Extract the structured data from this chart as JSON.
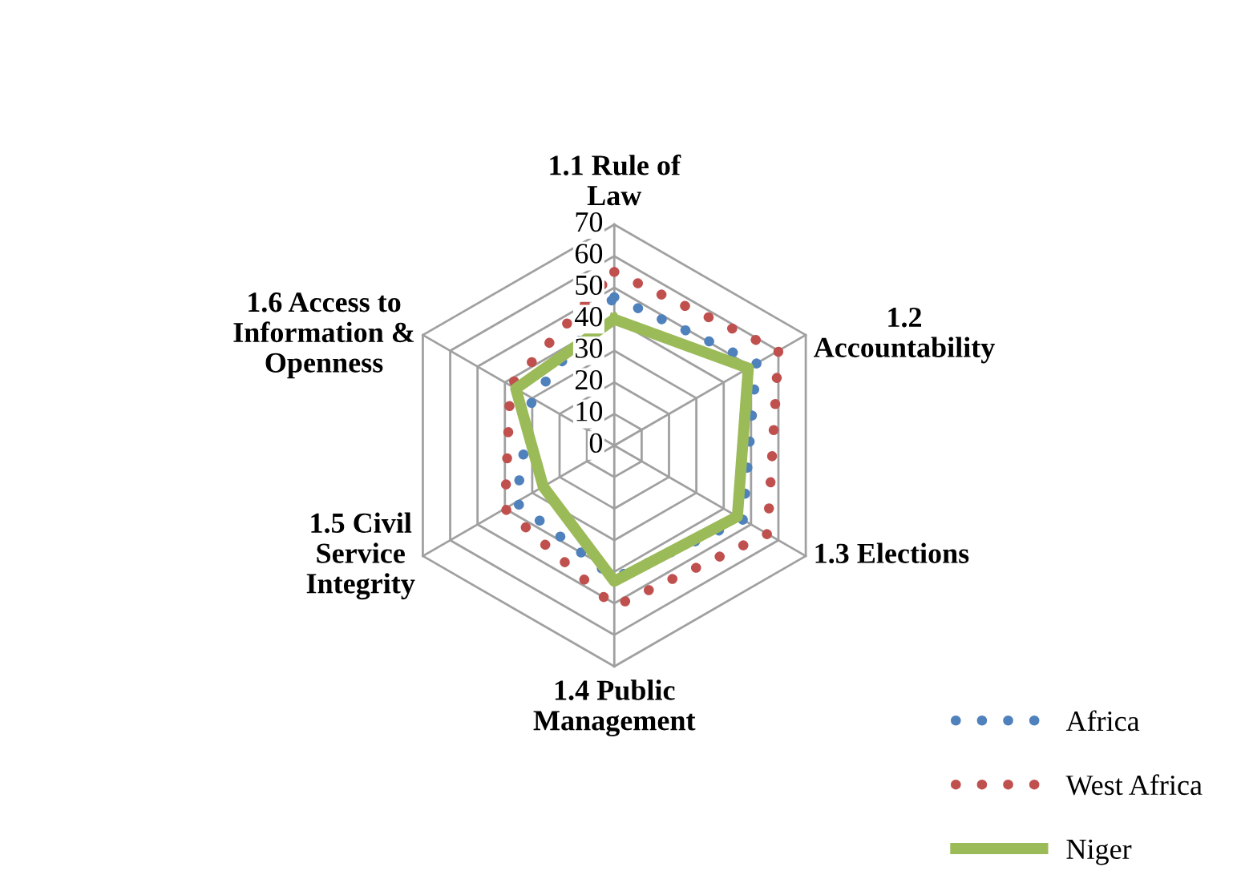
{
  "chart_data": {
    "type": "radar",
    "categories": [
      "1.1 Rule of\nLaw",
      "1.2\nAccountability",
      "1.3 Elections",
      "1.4 Public\nManagement",
      "1.5 Civil\nService\nIntegrity",
      "1.6 Access to\nInformation &\nOpenness"
    ],
    "series": [
      {
        "name": "Africa",
        "color": "#4f81bd",
        "line_style": "dotted",
        "values": [
          47,
          52,
          47,
          42,
          36,
          30
        ]
      },
      {
        "name": "West Africa",
        "color": "#c0504d",
        "line_style": "dotted",
        "values": [
          55,
          60,
          56,
          51,
          40,
          38
        ]
      },
      {
        "name": "Niger",
        "color": "#9bbb59",
        "line_style": "solid",
        "values": [
          40,
          49,
          45,
          43,
          26,
          36
        ]
      }
    ],
    "ylim": [
      0,
      70
    ],
    "yticks": [
      0,
      10,
      20,
      30,
      40,
      50,
      60,
      70
    ],
    "grid": true,
    "legend": "bottom right"
  }
}
